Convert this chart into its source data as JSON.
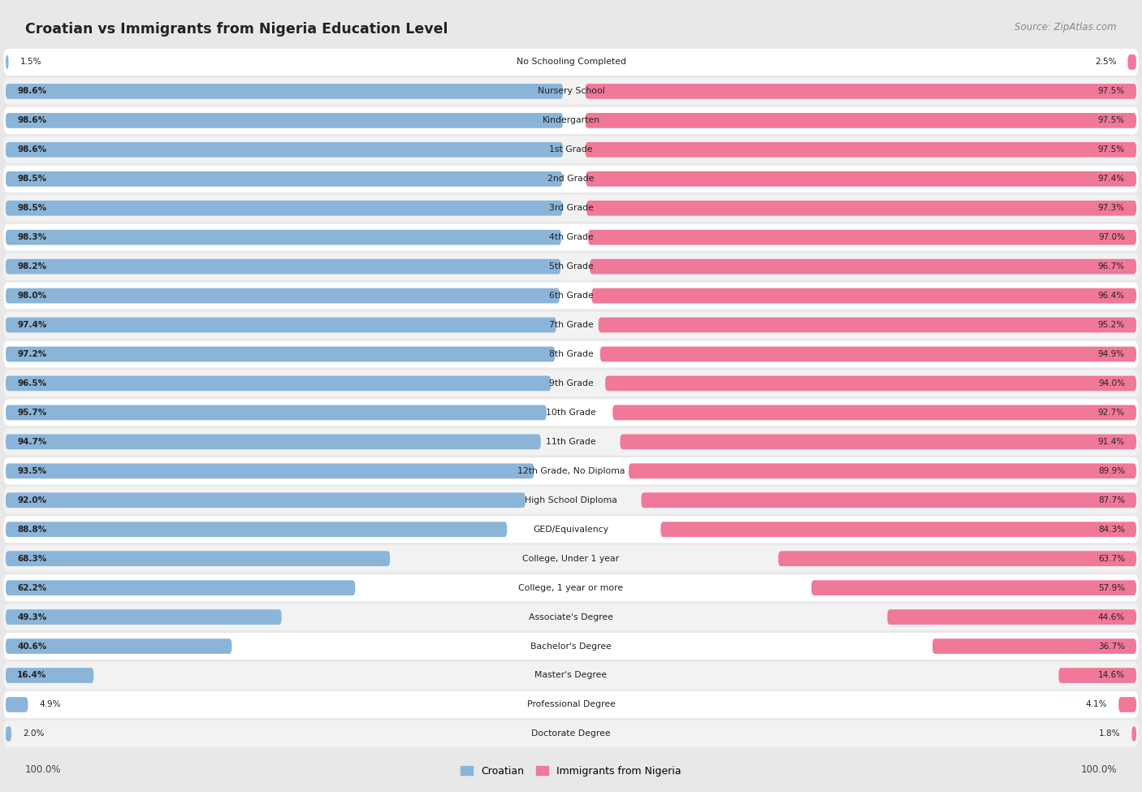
{
  "title": "Croatian vs Immigrants from Nigeria Education Level",
  "source": "Source: ZipAtlas.com",
  "categories": [
    "No Schooling Completed",
    "Nursery School",
    "Kindergarten",
    "1st Grade",
    "2nd Grade",
    "3rd Grade",
    "4th Grade",
    "5th Grade",
    "6th Grade",
    "7th Grade",
    "8th Grade",
    "9th Grade",
    "10th Grade",
    "11th Grade",
    "12th Grade, No Diploma",
    "High School Diploma",
    "GED/Equivalency",
    "College, Under 1 year",
    "College, 1 year or more",
    "Associate's Degree",
    "Bachelor's Degree",
    "Master's Degree",
    "Professional Degree",
    "Doctorate Degree"
  ],
  "croatian": [
    1.5,
    98.6,
    98.6,
    98.6,
    98.5,
    98.5,
    98.3,
    98.2,
    98.0,
    97.4,
    97.2,
    96.5,
    95.7,
    94.7,
    93.5,
    92.0,
    88.8,
    68.3,
    62.2,
    49.3,
    40.6,
    16.4,
    4.9,
    2.0
  ],
  "nigeria": [
    2.5,
    97.5,
    97.5,
    97.5,
    97.4,
    97.3,
    97.0,
    96.7,
    96.4,
    95.2,
    94.9,
    94.0,
    92.7,
    91.4,
    89.9,
    87.7,
    84.3,
    63.7,
    57.9,
    44.6,
    36.7,
    14.6,
    4.1,
    1.8
  ],
  "croatian_color": "#8ab4d8",
  "nigeria_color": "#f07898",
  "background_color": "#e8e8e8",
  "row_bg_color": "#ffffff",
  "row_alt_bg_color": "#f2f2f2",
  "legend_label_croatian": "Croatian",
  "legend_label_nigeria": "Immigrants from Nigeria",
  "axis_label": "100.0%"
}
